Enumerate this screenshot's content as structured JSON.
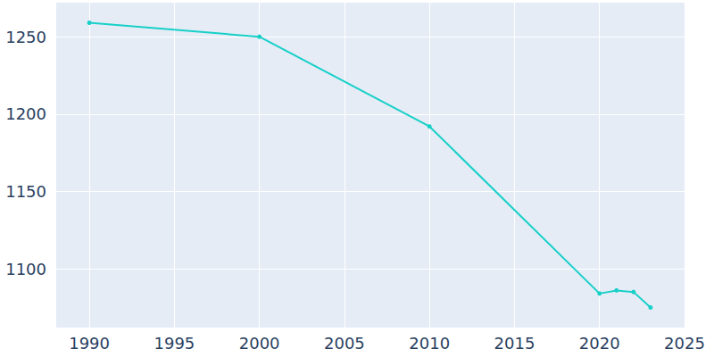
{
  "chart_data": {
    "type": "line",
    "x": [
      1990,
      2000,
      2010,
      2020,
      2021,
      2022,
      2023
    ],
    "values": [
      1259,
      1250,
      1192,
      1084,
      1086,
      1085,
      1075
    ],
    "color": "#17d0c8",
    "marker": "circle",
    "xlim": [
      1988,
      2025
    ],
    "xticks": [
      1990,
      1995,
      2000,
      2005,
      2010,
      2015,
      2020,
      2025
    ],
    "ylim": [
      1062,
      1272
    ],
    "yticks": [
      1100,
      1150,
      1200,
      1250
    ],
    "grid": true
  }
}
